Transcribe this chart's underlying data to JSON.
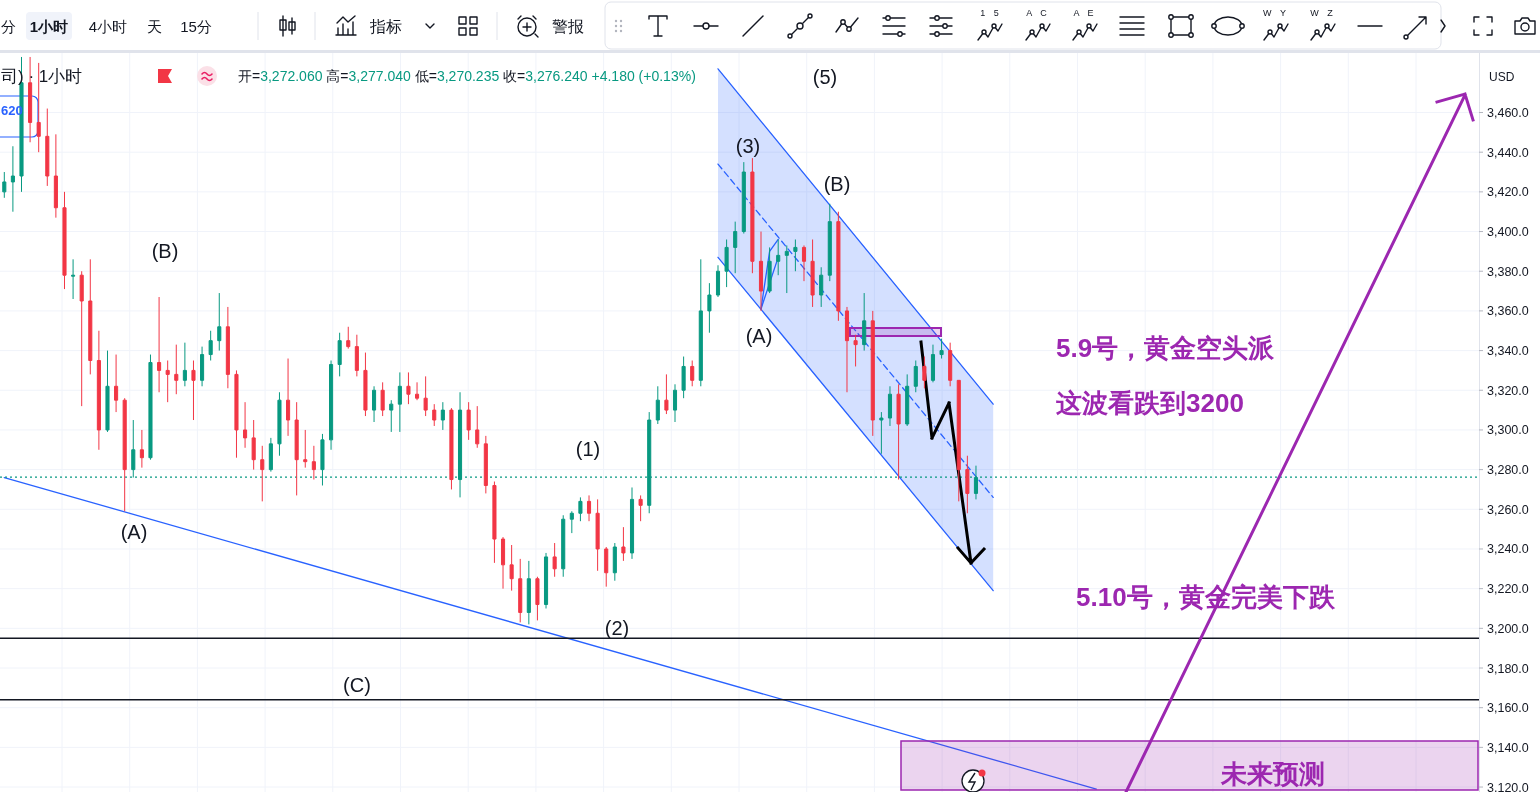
{
  "chart_data": {
    "type": "candlestick",
    "title": "司) · 1小时",
    "categories": [
      null,
      null,
      null,
      null,
      null,
      null,
      null,
      null,
      null,
      null,
      null,
      null,
      null,
      null,
      null,
      null,
      null,
      null,
      null,
      null,
      null,
      null,
      null,
      null,
      null,
      null,
      null,
      null,
      null,
      null,
      null,
      null,
      null,
      null,
      null,
      null,
      null,
      null,
      null,
      null,
      null,
      null,
      null,
      null,
      null,
      null,
      null,
      null,
      null,
      null,
      null,
      null,
      null,
      null,
      null,
      null,
      null,
      null,
      null,
      null,
      null,
      null,
      null,
      null,
      null,
      null,
      null,
      null,
      null,
      null,
      null,
      null,
      null,
      null,
      null,
      null,
      null,
      null,
      null,
      null,
      null,
      null,
      null,
      null,
      null,
      null,
      null,
      null,
      null,
      null,
      null,
      null,
      null,
      null,
      null,
      null,
      null,
      null,
      null,
      null,
      null,
      null,
      null,
      null,
      null,
      null,
      null,
      null,
      null,
      null,
      null,
      null,
      null,
      null,
      null,
      null,
      null,
      null,
      null,
      null,
      null,
      null,
      null,
      null,
      null,
      null,
      null,
      null,
      null,
      null,
      null,
      null,
      null,
      null,
      null,
      null,
      null,
      null,
      null,
      null,
      null,
      null,
      null,
      null,
      null,
      null,
      null,
      null,
      null,
      null,
      null,
      null,
      null,
      null,
      null,
      null,
      null,
      null,
      null,
      null,
      null,
      null,
      null,
      null,
      null,
      null,
      null,
      null,
      null,
      null,
      null,
      null
    ],
    "ohlc": [
      [
        3420,
        3430,
        3417,
        3425
      ],
      [
        3425,
        3443,
        3410,
        3428
      ],
      [
        3428,
        3488,
        3420,
        3475
      ],
      [
        3475,
        3488,
        3445,
        3455
      ],
      [
        3455,
        3485,
        3440,
        3448
      ],
      [
        3448,
        3462,
        3423,
        3428
      ],
      [
        3428,
        3449,
        3407,
        3412
      ],
      [
        3412,
        3420,
        3371,
        3378
      ],
      [
        3378,
        3386,
        3366,
        3378
      ],
      [
        3378,
        3380,
        3312,
        3365
      ],
      [
        3365,
        3386,
        3328,
        3335
      ],
      [
        3335,
        3350,
        3290,
        3300
      ],
      [
        3300,
        3340,
        3299,
        3322
      ],
      [
        3322,
        3338,
        3309,
        3315
      ],
      [
        3315,
        3316,
        3259,
        3280
      ],
      [
        3280,
        3305,
        3276,
        3290
      ],
      [
        3290,
        3300,
        3281,
        3286
      ],
      [
        3286,
        3338,
        3285,
        3334
      ],
      [
        3334,
        3367,
        3319,
        3330
      ],
      [
        3330,
        3335,
        3314,
        3328
      ],
      [
        3328,
        3343,
        3318,
        3325
      ],
      [
        3325,
        3344,
        3322,
        3330
      ],
      [
        3330,
        3335,
        3305,
        3325
      ],
      [
        3325,
        3342,
        3322,
        3338
      ],
      [
        3338,
        3350,
        3335,
        3345
      ],
      [
        3345,
        3369,
        3340,
        3352
      ],
      [
        3352,
        3362,
        3321,
        3328
      ],
      [
        3328,
        3330,
        3286,
        3300
      ],
      [
        3300,
        3314,
        3291,
        3296
      ],
      [
        3296,
        3305,
        3280,
        3285
      ],
      [
        3285,
        3292,
        3264,
        3280
      ],
      [
        3280,
        3296,
        3279,
        3293
      ],
      [
        3293,
        3319,
        3287,
        3315
      ],
      [
        3315,
        3336,
        3297,
        3305
      ],
      [
        3305,
        3314,
        3267,
        3285
      ],
      [
        3285,
        3300,
        3281,
        3284
      ],
      [
        3284,
        3292,
        3275,
        3280
      ],
      [
        3280,
        3298,
        3272,
        3295
      ],
      [
        3295,
        3335,
        3290,
        3333
      ],
      [
        3333,
        3349,
        3327,
        3345
      ],
      [
        3345,
        3352,
        3341,
        3342
      ],
      [
        3342,
        3348,
        3327,
        3330
      ],
      [
        3330,
        3339,
        3307,
        3310
      ],
      [
        3310,
        3322,
        3304,
        3320
      ],
      [
        3320,
        3324,
        3307,
        3310
      ],
      [
        3310,
        3315,
        3299,
        3313
      ],
      [
        3313,
        3329,
        3299,
        3322
      ],
      [
        3322,
        3329,
        3313,
        3318
      ],
      [
        3318,
        3324,
        3315,
        3316
      ],
      [
        3316,
        3327,
        3307,
        3310
      ],
      [
        3310,
        3313,
        3302,
        3305
      ],
      [
        3305,
        3314,
        3300,
        3310
      ],
      [
        3310,
        3311,
        3270,
        3275
      ],
      [
        3275,
        3319,
        3266,
        3310
      ],
      [
        3310,
        3314,
        3295,
        3300
      ],
      [
        3300,
        3312,
        3291,
        3293
      ],
      [
        3293,
        3297,
        3268,
        3272
      ],
      [
        3272,
        3274,
        3233,
        3245
      ],
      [
        3245,
        3246,
        3220,
        3232
      ],
      [
        3232,
        3242,
        3219,
        3225
      ],
      [
        3225,
        3235,
        3203,
        3208
      ],
      [
        3208,
        3234,
        3202,
        3225
      ],
      [
        3225,
        3226,
        3204,
        3212
      ],
      [
        3212,
        3238,
        3210,
        3236
      ],
      [
        3236,
        3243,
        3226,
        3230
      ],
      [
        3230,
        3257,
        3226,
        3255
      ],
      [
        3255,
        3259,
        3248,
        3258
      ],
      [
        3258,
        3266,
        3254,
        3264
      ],
      [
        3264,
        3267,
        3254,
        3258
      ],
      [
        3258,
        3265,
        3229,
        3240
      ],
      [
        3240,
        3241,
        3221,
        3228
      ],
      [
        3228,
        3243,
        3224,
        3241
      ],
      [
        3241,
        3251,
        3234,
        3238
      ],
      [
        3238,
        3271,
        3235,
        3265
      ],
      [
        3265,
        3267,
        3254,
        3262
      ],
      [
        3262,
        3309,
        3258,
        3305
      ],
      [
        3305,
        3322,
        3303,
        3315
      ],
      [
        3315,
        3328,
        3308,
        3310
      ],
      [
        3310,
        3323,
        3304,
        3320
      ],
      [
        3320,
        3337,
        3316,
        3332
      ],
      [
        3332,
        3335,
        3322,
        3325
      ],
      [
        3325,
        3386,
        3322,
        3360
      ],
      [
        3360,
        3374,
        3349,
        3368
      ],
      [
        3368,
        3383,
        3367,
        3380
      ],
      [
        3380,
        3396,
        3372,
        3392
      ],
      [
        3392,
        3405,
        3379,
        3400
      ],
      [
        3400,
        3435,
        3399,
        3430
      ],
      [
        3430,
        3437,
        3379,
        3385
      ],
      [
        3385,
        3400,
        3360,
        3370
      ],
      [
        3370,
        3392,
        3369,
        3385
      ],
      [
        3385,
        3396,
        3378,
        3388
      ],
      [
        3388,
        3393,
        3369,
        3390
      ],
      [
        3390,
        3396,
        3380,
        3392
      ],
      [
        3392,
        3393,
        3375,
        3385
      ],
      [
        3385,
        3396,
        3362,
        3368
      ],
      [
        3368,
        3382,
        3362,
        3378
      ],
      [
        3378,
        3414,
        3375,
        3405
      ],
      [
        3405,
        3410,
        3355,
        3360
      ],
      [
        3360,
        3362,
        3319,
        3345
      ],
      [
        3345,
        3348,
        3332,
        3343
      ],
      [
        3343,
        3369,
        3340,
        3355
      ],
      [
        3355,
        3360,
        3297,
        3305
      ],
      [
        3305,
        3309,
        3288,
        3306
      ],
      [
        3306,
        3322,
        3302,
        3318
      ],
      [
        3318,
        3323,
        3275,
        3303
      ],
      [
        3303,
        3328,
        3302,
        3322
      ],
      [
        3322,
        3335,
        3319,
        3332
      ],
      [
        3332,
        3337,
        3321,
        3325
      ],
      [
        3325,
        3343,
        3324,
        3338
      ],
      [
        3338,
        3346,
        3336,
        3340
      ],
      [
        3340,
        3344,
        3322,
        3325
      ],
      [
        3325,
        3325,
        3264,
        3280
      ],
      [
        3280,
        3287,
        3258,
        3268
      ],
      [
        3268,
        3282,
        3265,
        3276
      ],
      null,
      null,
      null,
      null,
      null,
      null,
      null,
      null,
      null,
      null,
      null,
      null,
      null,
      null,
      null,
      null,
      null,
      null,
      null,
      null,
      null,
      null,
      null,
      null,
      null,
      null,
      null,
      null,
      null,
      null,
      null,
      null,
      null,
      null,
      null,
      null,
      null,
      null,
      null,
      null,
      null,
      null,
      null,
      null,
      null,
      null,
      null,
      null,
      null,
      null,
      null,
      null,
      null,
      null,
      null,
      null,
      null,
      null
    ],
    "colors": [
      "#089981",
      "#089981",
      "#089981",
      "#f23645",
      "#f23645",
      "#f23645",
      "#f23645",
      "#f23645",
      "#089981",
      "#f23645",
      "#f23645",
      "#f23645",
      "#089981",
      "#f23645",
      "#f23645",
      "#089981",
      "#f23645",
      "#089981",
      "#f23645",
      "#f23645",
      "#f23645",
      "#089981",
      "#f23645",
      "#089981",
      "#089981",
      "#089981",
      "#f23645",
      "#f23645",
      "#f23645",
      "#f23645",
      "#f23645",
      "#089981",
      "#089981",
      "#f23645",
      "#f23645",
      "#f23645",
      "#f23645",
      "#089981",
      "#089981",
      "#089981",
      "#f23645",
      "#f23645",
      "#f23645",
      "#089981",
      "#f23645",
      "#089981",
      "#089981",
      "#f23645",
      "#f23645",
      "#f23645",
      "#f23645",
      "#089981",
      "#f23645",
      "#089981",
      "#f23645",
      "#f23645",
      "#f23645",
      "#f23645",
      "#f23645",
      "#f23645",
      "#f23645",
      "#089981",
      "#f23645",
      "#089981",
      "#f23645",
      "#089981",
      "#089981",
      "#089981",
      "#f23645",
      "#f23645",
      "#f23645",
      "#089981",
      "#f23645",
      "#089981",
      "#f23645",
      "#089981",
      "#089981",
      "#f23645",
      "#089981",
      "#089981",
      "#f23645",
      "#089981",
      "#089981",
      "#089981",
      "#089981",
      "#089981",
      "#089981",
      "#f23645",
      "#f23645",
      "#089981",
      "#089981",
      "#089981",
      "#089981",
      "#f23645",
      "#f23645",
      "#089981",
      "#089981",
      "#f23645",
      "#f23645",
      "#f23645",
      "#089981",
      "#f23645",
      "#089981",
      "#089981",
      "#f23645",
      "#089981",
      "#089981",
      "#f23645",
      "#089981",
      "#089981",
      "#f23645",
      "#f23645",
      "#f23645",
      "#089981",
      null,
      null,
      null,
      null,
      null,
      null,
      null,
      null,
      null,
      null,
      null,
      null,
      null,
      null,
      null,
      null,
      null,
      null,
      null,
      null,
      null,
      null,
      null,
      null,
      null,
      null,
      null,
      null,
      null,
      null,
      null,
      null,
      null,
      null,
      null,
      null,
      null,
      null,
      null,
      null,
      null,
      null,
      null,
      null,
      null,
      null,
      null,
      null,
      null,
      null,
      null,
      null,
      null,
      null,
      null,
      null,
      null,
      null
    ],
    "series": [
      {
        "type": "line",
        "color": "#2962ff",
        "line_style": "solid",
        "values": [
          3276,
          null,
          null,
          null,
          null,
          null,
          null,
          null,
          null,
          null,
          null,
          null,
          null,
          null,
          null,
          null,
          null,
          null,
          null,
          null,
          null,
          null,
          null,
          null,
          null,
          null,
          null,
          null,
          null,
          null,
          null,
          null,
          null,
          null,
          null,
          null,
          null,
          null,
          null,
          null,
          null,
          null,
          null,
          null,
          null,
          null,
          null,
          null,
          null,
          null,
          null,
          null,
          null,
          null,
          null,
          null,
          null,
          null,
          null,
          null,
          null,
          null,
          null,
          null,
          null,
          null,
          null,
          null,
          null,
          null,
          null,
          null,
          null,
          null,
          null,
          null,
          null,
          null,
          null,
          null,
          null,
          null,
          null,
          null,
          null,
          null,
          null,
          null,
          null,
          null,
          null,
          null,
          null,
          null,
          null,
          null,
          null,
          null,
          null,
          null,
          null,
          null,
          null,
          null,
          null,
          null,
          null,
          null,
          null,
          null,
          null,
          null,
          null,
          null,
          null,
          null,
          null,
          null,
          null,
          null,
          null,
          null,
          null,
          null,
          null,
          null,
          null,
          3119,
          null,
          null,
          null,
          null,
          null,
          null,
          null,
          null,
          null,
          null,
          null,
          null,
          null,
          null,
          null,
          null,
          null,
          null,
          null,
          null,
          null,
          null,
          null,
          null,
          null,
          null,
          null,
          null,
          null,
          null,
          null,
          null,
          null,
          null,
          null,
          null,
          null,
          null,
          null,
          null,
          null,
          null,
          null,
          null
        ]
      },
      {
        "type": "line",
        "color": "#2962ff",
        "line_style": "solid",
        "values": [
          null,
          null,
          null,
          null,
          null,
          null,
          null,
          null,
          null,
          null,
          null,
          null,
          null,
          null,
          null,
          null,
          null,
          null,
          null,
          null,
          null,
          null,
          null,
          null,
          null,
          null,
          null,
          null,
          null,
          null,
          null,
          null,
          null,
          null,
          null,
          null,
          null,
          null,
          null,
          null,
          null,
          null,
          null,
          null,
          null,
          null,
          null,
          null,
          null,
          null,
          null,
          null,
          null,
          null,
          null,
          null,
          null,
          null,
          null,
          null,
          null,
          null,
          null,
          null,
          null,
          null,
          null,
          null,
          null,
          null,
          null,
          null,
          null,
          null,
          null,
          null,
          null,
          null,
          null,
          null,
          null,
          null,
          null,
          3482,
          null,
          null,
          null,
          null,
          null,
          null,
          null,
          null,
          null,
          null,
          null,
          null,
          null,
          null,
          null,
          null,
          null,
          null,
          null,
          null,
          null,
          null,
          null,
          null,
          null,
          null,
          null,
          null,
          null,
          null,
          null,
          3313,
          null,
          null,
          null,
          null,
          null,
          null,
          null,
          null,
          null,
          null,
          null,
          null,
          null,
          null,
          null,
          null,
          null,
          null,
          null,
          null,
          null,
          null,
          null,
          null,
          null,
          null,
          null,
          null,
          null,
          null,
          null,
          null,
          null,
          null,
          null,
          null,
          null,
          null,
          null,
          null,
          null,
          null,
          null,
          null,
          null,
          null,
          null,
          null,
          null,
          null,
          null,
          null,
          null,
          null,
          null,
          null
        ]
      },
      {
        "type": "line",
        "color": "#2962ff",
        "line_style": "solid",
        "values": [
          null,
          null,
          null,
          null,
          null,
          null,
          null,
          null,
          null,
          null,
          null,
          null,
          null,
          null,
          null,
          null,
          null,
          null,
          null,
          null,
          null,
          null,
          null,
          null,
          null,
          null,
          null,
          null,
          null,
          null,
          null,
          null,
          null,
          null,
          null,
          null,
          null,
          null,
          null,
          null,
          null,
          null,
          null,
          null,
          null,
          null,
          null,
          null,
          null,
          null,
          null,
          null,
          null,
          null,
          null,
          null,
          null,
          null,
          null,
          null,
          null,
          null,
          null,
          null,
          null,
          null,
          null,
          null,
          null,
          null,
          null,
          null,
          null,
          null,
          null,
          null,
          null,
          null,
          null,
          null,
          null,
          null,
          null,
          3387,
          null,
          null,
          null,
          null,
          null,
          null,
          null,
          null,
          null,
          null,
          null,
          null,
          null,
          null,
          null,
          null,
          null,
          null,
          null,
          null,
          null,
          null,
          null,
          null,
          null,
          null,
          null,
          null,
          null,
          null,
          null,
          3219,
          null,
          null,
          null,
          null,
          null,
          null,
          null,
          null,
          null,
          null,
          null,
          null,
          null,
          null,
          null,
          null,
          null,
          null,
          null,
          null,
          null,
          null,
          null,
          null,
          null,
          null,
          null,
          null,
          null,
          null,
          null,
          null,
          null,
          null,
          null,
          null,
          null,
          null,
          null,
          null,
          null,
          null,
          null,
          null,
          null,
          null,
          null,
          null,
          null,
          null,
          null,
          null,
          null,
          null,
          null,
          null
        ]
      },
      {
        "type": "line",
        "color": "#2962ff",
        "line_style": "dashed",
        "values": [
          null,
          null,
          null,
          null,
          null,
          null,
          null,
          null,
          null,
          null,
          null,
          null,
          null,
          null,
          null,
          null,
          null,
          null,
          null,
          null,
          null,
          null,
          null,
          null,
          null,
          null,
          null,
          null,
          null,
          null,
          null,
          null,
          null,
          null,
          null,
          null,
          null,
          null,
          null,
          null,
          null,
          null,
          null,
          null,
          null,
          null,
          null,
          null,
          null,
          null,
          null,
          null,
          null,
          null,
          null,
          null,
          null,
          null,
          null,
          null,
          null,
          null,
          null,
          null,
          null,
          null,
          null,
          null,
          null,
          null,
          null,
          null,
          null,
          null,
          null,
          null,
          null,
          null,
          null,
          null,
          null,
          null,
          null,
          3434,
          null,
          null,
          null,
          null,
          null,
          null,
          null,
          null,
          null,
          null,
          null,
          null,
          null,
          null,
          null,
          null,
          null,
          null,
          null,
          null,
          null,
          null,
          null,
          null,
          null,
          null,
          null,
          null,
          null,
          null,
          null,
          3266,
          null,
          null,
          null,
          null,
          null,
          null,
          null,
          null,
          null,
          null,
          null,
          null,
          null,
          null,
          null,
          null,
          null,
          null,
          null,
          null,
          null,
          null,
          null,
          null,
          null,
          null,
          null,
          null,
          null,
          null,
          null,
          null,
          null,
          null,
          null,
          null,
          null,
          null,
          null,
          null,
          null,
          null,
          null,
          null,
          null,
          null,
          null,
          null,
          null,
          null,
          null,
          null,
          null,
          null,
          null,
          null
        ],
        "lower": [
          null,
          null,
          null,
          null,
          null,
          null,
          null,
          null,
          null,
          null,
          null,
          null,
          null,
          null,
          null,
          null,
          null,
          null,
          null,
          null,
          null,
          null,
          null,
          null,
          null,
          null,
          null,
          null,
          null,
          null,
          null,
          null,
          null,
          null,
          null,
          null,
          null,
          null,
          null,
          null,
          null,
          null,
          null,
          null,
          null,
          null,
          null,
          null,
          null,
          null,
          null,
          null,
          null,
          null,
          null,
          null,
          null,
          null,
          null,
          null,
          null,
          null,
          null,
          null,
          null,
          null,
          null,
          null,
          null,
          null,
          null,
          null,
          null,
          null,
          null,
          null,
          null,
          null,
          null,
          null,
          null,
          null,
          null,
          3387,
          null,
          null,
          null,
          null,
          null,
          null,
          null,
          null,
          null,
          null,
          null,
          null,
          null,
          null,
          null,
          null,
          null,
          null,
          null,
          null,
          null,
          null,
          null,
          null,
          null,
          null,
          null,
          null,
          null,
          null,
          null,
          3219,
          null,
          null,
          null,
          null,
          null,
          null,
          null,
          null,
          null,
          null,
          null,
          null,
          null,
          null,
          null,
          null,
          null,
          null,
          null,
          null,
          null,
          null,
          null,
          null,
          null,
          null,
          null,
          null,
          null,
          null,
          null,
          null,
          null,
          null,
          null,
          null,
          null,
          null,
          null,
          null,
          null,
          null,
          null,
          null,
          null,
          null,
          null,
          null,
          null,
          null,
          null,
          null,
          null,
          null,
          null,
          null
        ],
        "upper": [
          null,
          null,
          null,
          null,
          null,
          null,
          null,
          null,
          null,
          null,
          null,
          null,
          null,
          null,
          null,
          null,
          null,
          null,
          null,
          null,
          null,
          null,
          null,
          null,
          null,
          null,
          null,
          null,
          null,
          null,
          null,
          null,
          null,
          null,
          null,
          null,
          null,
          null,
          null,
          null,
          null,
          null,
          null,
          null,
          null,
          null,
          null,
          null,
          null,
          null,
          null,
          null,
          null,
          null,
          null,
          null,
          null,
          null,
          null,
          null,
          null,
          null,
          null,
          null,
          null,
          null,
          null,
          null,
          null,
          null,
          null,
          null,
          null,
          null,
          null,
          null,
          null,
          null,
          null,
          null,
          null,
          null,
          null,
          3482,
          null,
          null,
          null,
          null,
          null,
          null,
          null,
          null,
          null,
          null,
          null,
          null,
          null,
          null,
          null,
          null,
          null,
          null,
          null,
          null,
          null,
          null,
          null,
          null,
          null,
          null,
          null,
          null,
          null,
          null,
          null,
          3313,
          null,
          null,
          null,
          null,
          null,
          null,
          null,
          null,
          null,
          null,
          null,
          null,
          null,
          null,
          null,
          null,
          null,
          null,
          null,
          null,
          null,
          null,
          null,
          null,
          null,
          null,
          null,
          null,
          null,
          null,
          null,
          null,
          null,
          null,
          null,
          null,
          null,
          null,
          null,
          null,
          null,
          null,
          null,
          null,
          null,
          null,
          null,
          null,
          null,
          null,
          null,
          null,
          null,
          null,
          null,
          null
        ]
      },
      {
        "type": "line",
        "color": "#2962ff",
        "line_style": "solid",
        "values": [
          null,
          null,
          null,
          null,
          null,
          null,
          null,
          null,
          null,
          null,
          null,
          null,
          null,
          null,
          null,
          null,
          null,
          null,
          null,
          null,
          null,
          null,
          null,
          null,
          null,
          null,
          null,
          null,
          null,
          null,
          null,
          null,
          null,
          null,
          null,
          null,
          null,
          null,
          null,
          null,
          null,
          null,
          null,
          null,
          null,
          null,
          null,
          null,
          null,
          null,
          null,
          null,
          null,
          null,
          null,
          null,
          null,
          null,
          null,
          null,
          null,
          null,
          null,
          null,
          null,
          null,
          null,
          null,
          null,
          null,
          null,
          null,
          null,
          null,
          null,
          null,
          null,
          null,
          null,
          null,
          null,
          null,
          null,
          null,
          null,
          null,
          null,
          null,
          3361,
          null,
          3387,
          null,
          null,
          null,
          null,
          null,
          null,
          null,
          null,
          null,
          null,
          null,
          null,
          null,
          null,
          null,
          null,
          null,
          null,
          null,
          null,
          null,
          null,
          null,
          null,
          null,
          null,
          null,
          null,
          null,
          null,
          null,
          null,
          null,
          null,
          null,
          null,
          null,
          null,
          null,
          null,
          null,
          null,
          null,
          null,
          null,
          null,
          null,
          null,
          null,
          null,
          null,
          null,
          null,
          null,
          null,
          null,
          null,
          null,
          null,
          null,
          null,
          null,
          null,
          null,
          null,
          null,
          null,
          null,
          null,
          null,
          null,
          null,
          null,
          null,
          null,
          null,
          null,
          null,
          null,
          null,
          null
        ]
      },
      {
        "type": "line",
        "color": "#2962ff",
        "line_style": "solid",
        "values": [
          null,
          null,
          null,
          null,
          null,
          null,
          null,
          null,
          null,
          null,
          null,
          null,
          null,
          null,
          null,
          null,
          null,
          null,
          null,
          null,
          null,
          null,
          null,
          null,
          null,
          null,
          null,
          null,
          null,
          null,
          null,
          null,
          null,
          null,
          null,
          null,
          null,
          null,
          null,
          null,
          null,
          null,
          null,
          null,
          null,
          null,
          null,
          null,
          null,
          null,
          null,
          null,
          null,
          null,
          null,
          null,
          null,
          null,
          null,
          null,
          null,
          null,
          null,
          null,
          null,
          null,
          null,
          null,
          null,
          null,
          null,
          null,
          null,
          null,
          null,
          null,
          null,
          null,
          null,
          null,
          null,
          null,
          null,
          null,
          null,
          null,
          null,
          null,
          3361,
          3390,
          3396,
          null,
          null,
          null,
          null,
          null,
          null,
          null,
          null,
          null,
          null,
          null,
          null,
          null,
          null,
          null,
          null,
          null,
          null,
          null,
          null,
          null,
          null,
          null,
          null,
          null,
          null,
          null,
          null,
          null,
          null,
          null,
          null,
          null,
          null,
          null,
          null,
          null,
          null,
          null,
          null,
          null,
          null,
          null,
          null,
          null,
          null,
          null,
          null,
          null,
          null,
          null,
          null,
          null,
          null,
          null,
          null,
          null,
          null,
          null,
          null,
          null,
          null,
          null,
          null,
          null,
          null,
          null,
          null,
          null,
          null,
          null,
          null,
          null,
          null,
          null,
          null,
          null,
          null,
          null,
          null,
          null
        ]
      }
    ],
    "ref_lines": [
      {
        "axis": "y",
        "value": 3195,
        "color": "#131722",
        "line_style": "solid"
      },
      {
        "axis": "y",
        "value": 3164,
        "color": "#131722",
        "line_style": "solid"
      },
      {
        "axis": "y",
        "value": 3276.24,
        "color": "#089981",
        "line_style": "dotted"
      }
    ],
    "ylim": [
      3117.5,
      3490
    ],
    "yticks": [
      {
        "value": 3120,
        "label": "3,120.0"
      },
      {
        "value": 3140,
        "label": "3,140.0"
      },
      {
        "value": 3160,
        "label": "3,160.0"
      },
      {
        "value": 3180,
        "label": "3,180.0"
      },
      {
        "value": 3200,
        "label": "3,200.0"
      },
      {
        "value": 3220,
        "label": "3,220.0"
      },
      {
        "value": 3240,
        "label": "3,240.0"
      },
      {
        "value": 3260,
        "label": "3,260.0"
      },
      {
        "value": 3280,
        "label": "3,280.0"
      },
      {
        "value": 3300,
        "label": "3,300.0"
      },
      {
        "value": 3320,
        "label": "3,320.0"
      },
      {
        "value": 3340,
        "label": "3,340.0"
      },
      {
        "value": 3360,
        "label": "3,360.0"
      },
      {
        "value": 3380,
        "label": "3,380.0"
      },
      {
        "value": 3400,
        "label": "3,400.0"
      },
      {
        "value": 3420,
        "label": "3,420.0"
      },
      {
        "value": 3440,
        "label": "3,440.0"
      },
      {
        "value": 3460,
        "label": "3,460.0"
      }
    ],
    "grid": true,
    "tick_labels": "y",
    "annotations": [
      "开=3,272.060 高=3,277.040 低=3,270.235 收=3,276.240 +4.180 (+0.13%)",
      "620",
      "(B)",
      "(A)",
      "(C)",
      "(1)",
      "(2)",
      "(3)",
      "(A)",
      "(B)",
      "(5)",
      "5.9号，黄金空头派",
      "这波看跌到3200",
      "5.10号，黄金完美下跌",
      "未来预测",
      "USD",
      "分",
      "1小时",
      "4小时",
      "天",
      "15分",
      "指标",
      "警报",
      "1 5",
      "A C",
      "A E",
      "W Y",
      "W Z"
    ]
  }
}
